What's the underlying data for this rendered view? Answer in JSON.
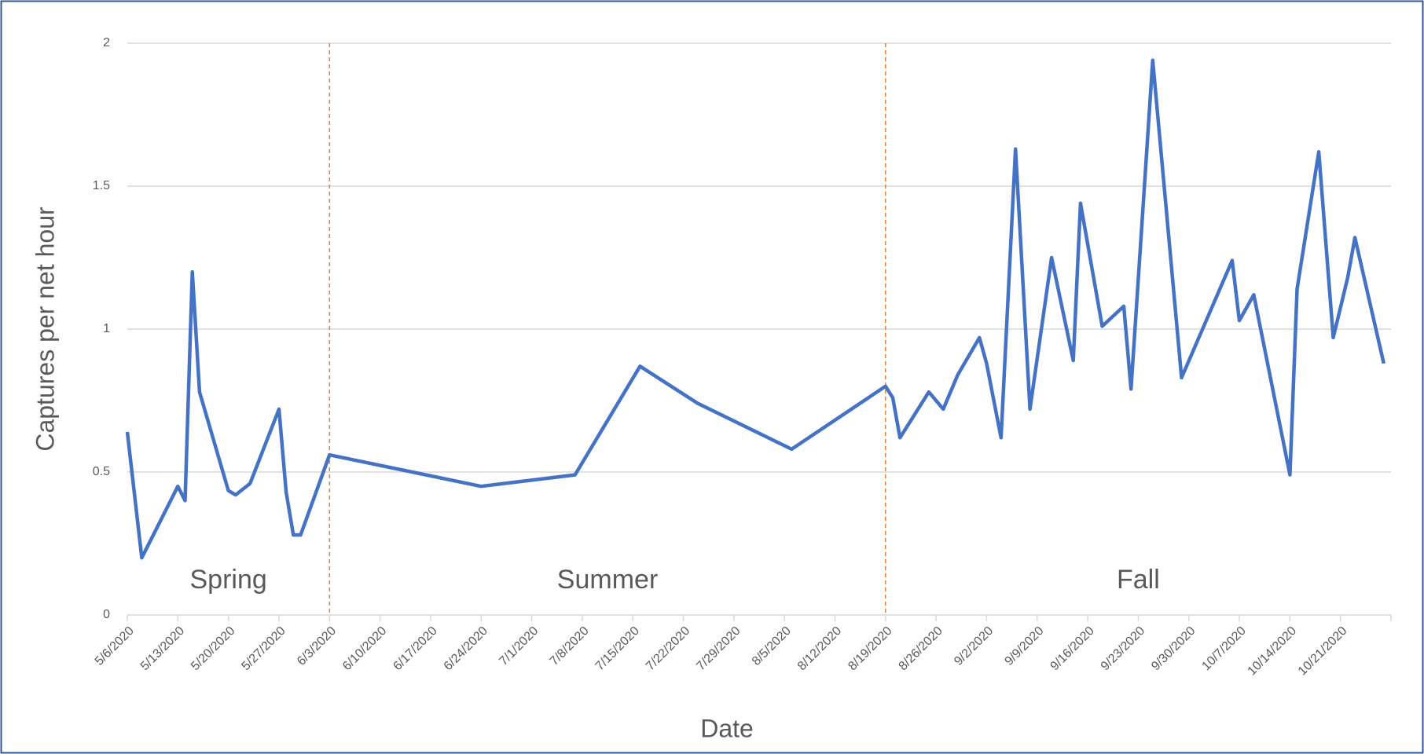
{
  "chart_data": {
    "type": "line",
    "x_label": "Date",
    "y_label": "Captures per net hour",
    "x": [
      "5/6/2020",
      "5/8/2020",
      "5/13/2020",
      "5/14/2020",
      "5/15/2020",
      "5/16/2020",
      "5/20/2020",
      "5/21/2020",
      "5/23/2020",
      "5/27/2020",
      "5/28/2020",
      "5/29/2020",
      "5/30/2020",
      "6/3/2020",
      "6/24/2020",
      "7/7/2020",
      "7/16/2020",
      "7/24/2020",
      "8/6/2020",
      "8/19/2020",
      "8/20/2020",
      "8/21/2020",
      "8/25/2020",
      "8/27/2020",
      "8/29/2020",
      "9/1/2020",
      "9/2/2020",
      "9/4/2020",
      "9/6/2020",
      "9/8/2020",
      "9/11/2020",
      "9/14/2020",
      "9/15/2020",
      "9/18/2020",
      "9/21/2020",
      "9/22/2020",
      "9/25/2020",
      "9/29/2020",
      "10/6/2020",
      "10/7/2020",
      "10/9/2020",
      "10/14/2020",
      "10/15/2020",
      "10/18/2020",
      "10/20/2020",
      "10/22/2020",
      "10/23/2020",
      "10/27/2020"
    ],
    "values": [
      0.64,
      0.2,
      0.45,
      0.4,
      1.2,
      0.78,
      0.435,
      0.42,
      0.46,
      0.72,
      0.43,
      0.28,
      0.28,
      0.56,
      0.45,
      0.49,
      0.87,
      0.74,
      0.58,
      0.8,
      0.76,
      0.62,
      0.78,
      0.72,
      0.84,
      0.97,
      0.88,
      0.62,
      1.63,
      0.72,
      1.25,
      0.89,
      1.44,
      1.01,
      1.08,
      0.79,
      1.94,
      0.83,
      1.24,
      1.03,
      1.12,
      0.49,
      1.14,
      1.62,
      0.97,
      1.18,
      1.32,
      0.88
    ],
    "color": "#4472c4",
    "xlim": [
      "5/6/2020",
      "10/28/2020"
    ],
    "xticks": [
      "5/6/2020",
      "5/13/2020",
      "5/20/2020",
      "5/27/2020",
      "6/3/2020",
      "6/10/2020",
      "6/17/2020",
      "6/24/2020",
      "7/1/2020",
      "7/8/2020",
      "7/15/2020",
      "7/22/2020",
      "7/29/2020",
      "8/5/2020",
      "8/12/2020",
      "8/19/2020",
      "8/26/2020",
      "9/2/2020",
      "9/9/2020",
      "9/16/2020",
      "9/23/2020",
      "9/30/2020",
      "10/7/2020",
      "10/14/2020",
      "10/21/2020"
    ],
    "ylim": [
      0,
      2
    ],
    "yticks": [
      0,
      0.5,
      1,
      1.5,
      2
    ],
    "grid": true,
    "dividers": [
      "6/3/2020",
      "8/19/2020"
    ],
    "divider_color": "#ed7d31",
    "regions": [
      "Spring",
      "Summer",
      "Fall"
    ]
  }
}
